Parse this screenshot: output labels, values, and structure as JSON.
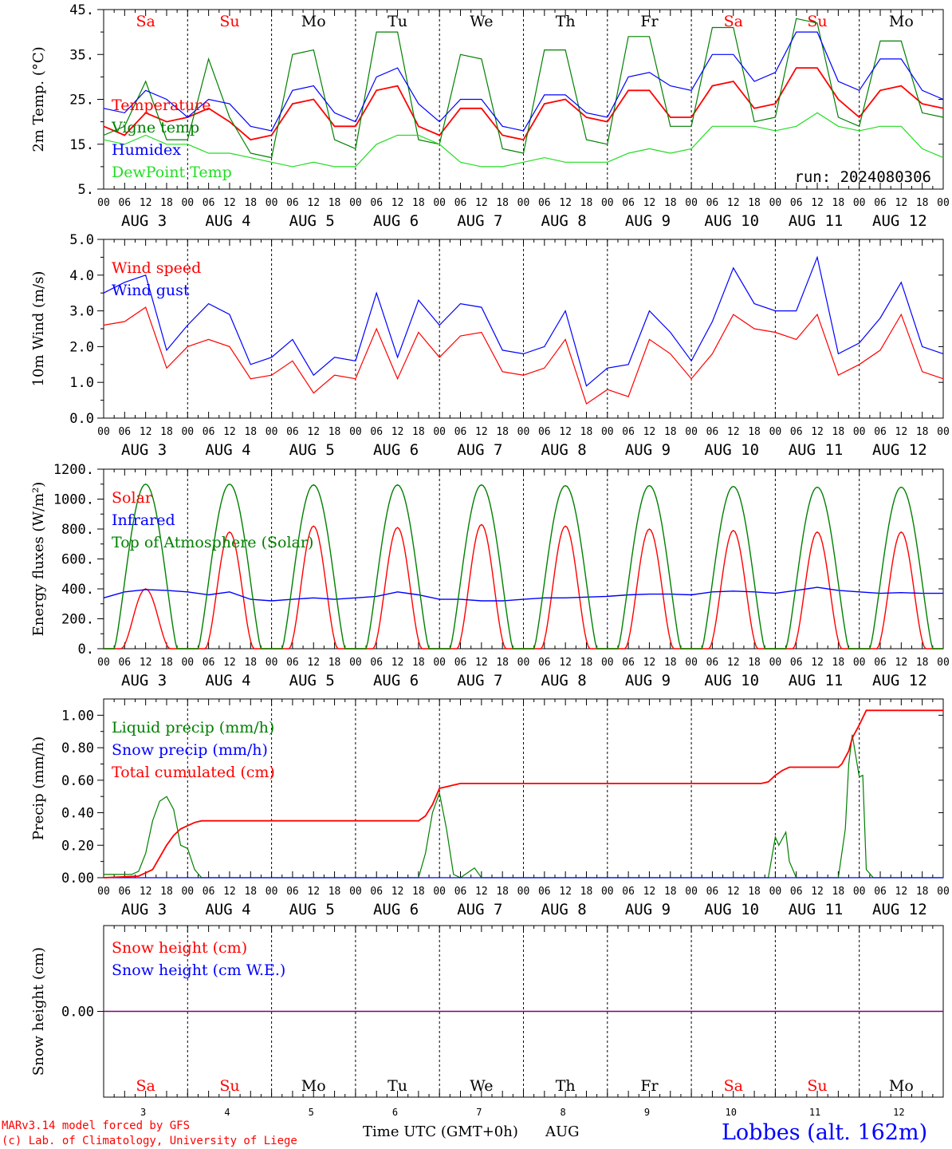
{
  "days": {
    "names": [
      "Sa",
      "Su",
      "Mo",
      "Tu",
      "We",
      "Th",
      "Fr",
      "Sa",
      "Su",
      "Mo"
    ],
    "weekend": [
      true,
      true,
      false,
      false,
      false,
      false,
      false,
      true,
      true,
      false
    ],
    "dates": [
      "AUG  3",
      "AUG  4",
      "AUG  5",
      "AUG  6",
      "AUG  7",
      "AUG  8",
      "AUG  9",
      "AUG 10",
      "AUG 11",
      "AUG 12"
    ],
    "numbers": [
      "3",
      "4",
      "5",
      "6",
      "7",
      "8",
      "9",
      "10",
      "11",
      "12"
    ],
    "hour_ticks": [
      "00",
      "06",
      "12",
      "18"
    ],
    "final_tick": "00"
  },
  "colors": {
    "red": "#ff0000",
    "green": "#008000",
    "blue": "#0000ff",
    "lime": "#22dd22",
    "purple": "#7f007f",
    "weekend": "#ff0000",
    "weekday": "#000000"
  },
  "footer": {
    "model": "MARv3.14 model forced by GFS",
    "lab": "(c) Lab. of Climatology, University of Liege",
    "time_label": "Time UTC (GMT+0h)",
    "month": "AUG",
    "station": "Lobbes (alt. 162m)"
  },
  "chart_data": [
    {
      "id": "temperature",
      "type": "line",
      "ylabel": "2m Temp. (°C)",
      "ylim": [
        5,
        45
      ],
      "yticks": [
        "45.",
        "35.",
        "25.",
        "15.",
        "5."
      ],
      "annotation": "run: 2024080306",
      "x_hours": [
        0,
        6,
        12,
        18,
        24,
        30,
        36,
        42,
        48,
        54,
        60,
        66,
        72,
        78,
        84,
        90,
        96,
        102,
        108,
        114,
        120,
        126,
        132,
        138,
        144,
        150,
        156,
        162,
        168,
        174,
        180,
        186,
        192,
        198,
        204,
        210,
        216,
        222,
        228,
        234,
        240
      ],
      "series": [
        {
          "name": "Temperature",
          "color": "red",
          "values": [
            19,
            17,
            22,
            20,
            21,
            23,
            20,
            16,
            17,
            24,
            25,
            19,
            19,
            27,
            28,
            19,
            17,
            23,
            23,
            17,
            16,
            24,
            25,
            21,
            20,
            27,
            27,
            21,
            21,
            28,
            29,
            23,
            24,
            32,
            32,
            25,
            21,
            27,
            28,
            24,
            23
          ]
        },
        {
          "name": "Vigne temp",
          "color": "green",
          "values": [
            17,
            19,
            29,
            16,
            16,
            34,
            21,
            13,
            12,
            35,
            36,
            16,
            14,
            40,
            40,
            16,
            15,
            35,
            34,
            14,
            13,
            36,
            36,
            16,
            15,
            39,
            39,
            19,
            19,
            41,
            41,
            20,
            21,
            43,
            42,
            21,
            19,
            38,
            38,
            22,
            21
          ]
        },
        {
          "name": "Humidex",
          "color": "blue",
          "values": [
            23,
            22,
            27,
            25,
            21,
            25,
            24,
            19,
            18,
            27,
            28,
            22,
            20,
            30,
            32,
            24,
            20,
            25,
            25,
            19,
            18,
            26,
            26,
            22,
            21,
            30,
            31,
            28,
            27,
            35,
            35,
            29,
            31,
            40,
            40,
            29,
            27,
            34,
            34,
            27,
            25
          ]
        },
        {
          "name": "DewPoint Temp",
          "color": "lime",
          "values": [
            16,
            15,
            17,
            15,
            15,
            13,
            13,
            12,
            11,
            10,
            11,
            10,
            10,
            15,
            17,
            17,
            15,
            11,
            10,
            10,
            11,
            12,
            11,
            11,
            11,
            13,
            14,
            13,
            14,
            19,
            19,
            19,
            18,
            19,
            22,
            19,
            18,
            19,
            19,
            14,
            12
          ]
        }
      ]
    },
    {
      "id": "wind",
      "type": "line",
      "ylabel": "10m Wind (m/s)",
      "ylim": [
        0,
        5
      ],
      "yticks": [
        "5.0",
        "4.0",
        "3.0",
        "2.0",
        "1.0",
        "0.0"
      ],
      "x_hours": [
        0,
        6,
        12,
        18,
        24,
        30,
        36,
        42,
        48,
        54,
        60,
        66,
        72,
        78,
        84,
        90,
        96,
        102,
        108,
        114,
        120,
        126,
        132,
        138,
        144,
        150,
        156,
        162,
        168,
        174,
        180,
        186,
        192,
        198,
        204,
        210,
        216,
        222,
        228,
        234,
        240
      ],
      "series": [
        {
          "name": "Wind speed",
          "color": "red",
          "values": [
            2.6,
            2.7,
            3.1,
            1.4,
            2.0,
            2.2,
            2.0,
            1.1,
            1.2,
            1.6,
            0.7,
            1.2,
            1.1,
            2.5,
            1.1,
            2.4,
            1.7,
            2.3,
            2.4,
            1.3,
            1.2,
            1.4,
            2.2,
            0.4,
            0.8,
            0.6,
            2.2,
            1.8,
            1.1,
            1.8,
            2.9,
            2.5,
            2.4,
            2.2,
            2.9,
            1.2,
            1.5,
            1.9,
            2.9,
            1.3,
            1.1
          ]
        },
        {
          "name": "Wind gust",
          "color": "blue",
          "values": [
            3.5,
            3.8,
            4.0,
            1.9,
            2.6,
            3.2,
            2.9,
            1.5,
            1.7,
            2.2,
            1.2,
            1.7,
            1.6,
            3.5,
            1.7,
            3.3,
            2.6,
            3.2,
            3.1,
            1.9,
            1.8,
            2.0,
            3.0,
            0.9,
            1.4,
            1.5,
            3.0,
            2.4,
            1.6,
            2.7,
            4.2,
            3.2,
            3.0,
            3.0,
            4.5,
            1.8,
            2.1,
            2.8,
            3.8,
            2.0,
            1.8
          ]
        }
      ]
    },
    {
      "id": "energy",
      "type": "line",
      "ylabel": "Energy fluxes (W/m²)",
      "ylim": [
        0,
        1200
      ],
      "yticks": [
        "1200.",
        "1000.",
        "800.",
        "600.",
        "400.",
        "200.",
        "0."
      ],
      "series": [
        {
          "name": "Solar",
          "color": "red",
          "daily_peak": [
            400,
            780,
            820,
            810,
            830,
            820,
            800,
            790,
            780,
            780
          ],
          "day_starts": [
            0,
            0,
            1,
            1,
            1,
            1,
            1,
            1,
            1,
            1
          ]
        },
        {
          "name": "Infrared",
          "color": "blue",
          "x_hours": [
            0,
            6,
            12,
            18,
            24,
            30,
            36,
            42,
            48,
            54,
            60,
            66,
            72,
            78,
            84,
            90,
            96,
            102,
            108,
            114,
            120,
            126,
            132,
            138,
            144,
            150,
            156,
            162,
            168,
            174,
            180,
            186,
            192,
            198,
            204,
            210,
            216,
            222,
            228,
            234,
            240
          ],
          "values": [
            340,
            380,
            395,
            390,
            380,
            360,
            380,
            330,
            320,
            330,
            340,
            330,
            340,
            350,
            380,
            360,
            330,
            330,
            320,
            320,
            330,
            340,
            340,
            345,
            350,
            360,
            365,
            365,
            360,
            380,
            385,
            380,
            370,
            390,
            410,
            390,
            380,
            370,
            375,
            370,
            370
          ]
        },
        {
          "name": "Top of Atmosphere (Solar)",
          "color": "green",
          "daily_peak": [
            1100,
            1100,
            1095,
            1095,
            1095,
            1090,
            1090,
            1085,
            1080,
            1080
          ]
        }
      ]
    },
    {
      "id": "precip",
      "type": "line",
      "ylabel": "Precip (mm/h)",
      "ylim": [
        0,
        1.1
      ],
      "yticks": [
        "1.00",
        "0.80",
        "0.60",
        "0.40",
        "0.20",
        "0.00"
      ],
      "series": [
        {
          "name": "Liquid precip (mm/h)",
          "color": "green",
          "x_hours": [
            0,
            8,
            10,
            12,
            14,
            16,
            18,
            20,
            22,
            24,
            26,
            28,
            30,
            90,
            92,
            94,
            96,
            98,
            100,
            102,
            104,
            106,
            108,
            110,
            120,
            190,
            192,
            193,
            195,
            196,
            198,
            200,
            210,
            212,
            213,
            214,
            215,
            216,
            217,
            218,
            220,
            240
          ],
          "values": [
            0.02,
            0.02,
            0.04,
            0.15,
            0.35,
            0.47,
            0.5,
            0.42,
            0.2,
            0.18,
            0.05,
            0.0,
            0.0,
            0.0,
            0.15,
            0.4,
            0.52,
            0.3,
            0.02,
            0.0,
            0.03,
            0.06,
            0.0,
            0.0,
            0.0,
            0.0,
            0.25,
            0.2,
            0.28,
            0.1,
            0.0,
            0.0,
            0.0,
            0.3,
            0.7,
            0.88,
            0.75,
            0.62,
            0.63,
            0.05,
            0.0,
            0.0
          ]
        },
        {
          "name": "Snow precip (mm/h)",
          "color": "blue",
          "x_hours": [
            0,
            240
          ],
          "values": [
            0.0,
            0.0
          ]
        },
        {
          "name": "Total cumulated (cm)",
          "color": "red",
          "x_hours": [
            0,
            10,
            14,
            18,
            20,
            22,
            24,
            26,
            28,
            90,
            92,
            94,
            96,
            98,
            100,
            102,
            188,
            190,
            192,
            194,
            196,
            198,
            210,
            211,
            213,
            214,
            216,
            218,
            240
          ],
          "values": [
            0.0,
            0.01,
            0.05,
            0.2,
            0.26,
            0.3,
            0.32,
            0.34,
            0.35,
            0.35,
            0.38,
            0.45,
            0.55,
            0.56,
            0.57,
            0.58,
            0.58,
            0.59,
            0.63,
            0.66,
            0.68,
            0.68,
            0.68,
            0.7,
            0.78,
            0.86,
            0.94,
            1.03,
            1.03
          ]
        }
      ]
    },
    {
      "id": "snow",
      "type": "line",
      "ylabel": "Snow height (cm)",
      "ylim": [
        -1,
        1
      ],
      "yticks": [
        "0.00"
      ],
      "series": [
        {
          "name": "Snow height (cm)",
          "color": "red",
          "values": [
            0,
            0
          ]
        },
        {
          "name": "Snow height (cm W.E.)",
          "color": "blue",
          "values": [
            0,
            0
          ]
        }
      ]
    }
  ]
}
